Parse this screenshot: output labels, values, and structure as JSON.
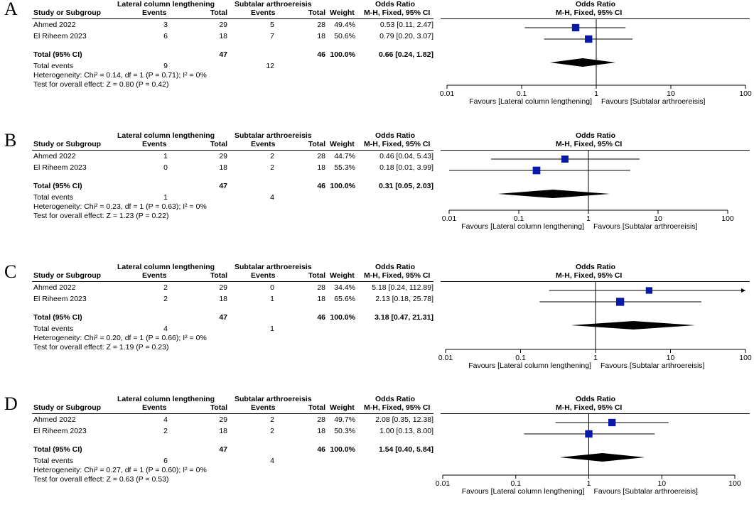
{
  "colors": {
    "marker": "#0a1aa8",
    "line": "#000000"
  },
  "headers": {
    "group1": "Lateral column lengthening",
    "group2": "Subtalar arthroereisis",
    "or_title": "Odds Ratio",
    "study": "Study or Subgroup",
    "events": "Events",
    "total": "Total",
    "weight": "Weight",
    "method": "M-H, Fixed, 95% CI"
  },
  "axis": {
    "ticks": [
      "0.01",
      "0.1",
      "1",
      "10",
      "100"
    ],
    "favours_left": "Favours [Lateral column lengthening]",
    "favours_right": "Favours [Subtalar arthroereisis]"
  },
  "panels": [
    {
      "letter": "A",
      "studies": [
        {
          "name": "Ahmed 2022",
          "e1": "3",
          "t1": "29",
          "e2": "5",
          "t2": "28",
          "weight": "49.4%",
          "ci": "0.53 [0.11, 2.47]"
        },
        {
          "name": "El Riheem 2023",
          "e1": "6",
          "t1": "18",
          "e2": "7",
          "t2": "18",
          "weight": "50.6%",
          "ci": "0.79 [0.20, 3.07]"
        }
      ],
      "total": {
        "label": "Total (95% CI)",
        "t1": "47",
        "t2": "46",
        "weight": "100.0%",
        "ci": "0.66 [0.24, 1.82]"
      },
      "events": {
        "label": "Total events",
        "e1": "9",
        "e2": "12"
      },
      "heterogeneity": "Heterogeneity: Chi² = 0.14, df = 1 (P = 0.71); I² = 0%",
      "overall": "Test for overall effect: Z = 0.80 (P = 0.42)"
    },
    {
      "letter": "B",
      "studies": [
        {
          "name": "Ahmed 2022",
          "e1": "1",
          "t1": "29",
          "e2": "2",
          "t2": "28",
          "weight": "44.7%",
          "ci": "0.46 [0.04, 5.43]"
        },
        {
          "name": "El Riheem 2023",
          "e1": "0",
          "t1": "18",
          "e2": "2",
          "t2": "18",
          "weight": "55.3%",
          "ci": "0.18 [0.01, 3.99]"
        }
      ],
      "total": {
        "label": "Total (95% CI)",
        "t1": "47",
        "t2": "46",
        "weight": "100.0%",
        "ci": "0.31 [0.05, 2.03]"
      },
      "events": {
        "label": "Total events",
        "e1": "1",
        "e2": "4"
      },
      "heterogeneity": "Heterogeneity: Chi² = 0.23, df = 1 (P = 0.63); I² = 0%",
      "overall": "Test for overall effect: Z = 1.23 (P = 0.22)"
    },
    {
      "letter": "C",
      "studies": [
        {
          "name": "Ahmed 2022",
          "e1": "2",
          "t1": "29",
          "e2": "0",
          "t2": "28",
          "weight": "34.4%",
          "ci": "5.18 [0.24, 112.89]"
        },
        {
          "name": "El Riheem 2023",
          "e1": "2",
          "t1": "18",
          "e2": "1",
          "t2": "18",
          "weight": "65.6%",
          "ci": "2.13 [0.18, 25.78]"
        }
      ],
      "total": {
        "label": "Total (95% CI)",
        "t1": "47",
        "t2": "46",
        "weight": "100.0%",
        "ci": "3.18 [0.47, 21.31]"
      },
      "events": {
        "label": "Total events",
        "e1": "4",
        "e2": "1"
      },
      "heterogeneity": "Heterogeneity: Chi² = 0.20, df = 1 (P = 0.66); I² = 0%",
      "overall": "Test for overall effect: Z = 1.19 (P = 0.23)"
    },
    {
      "letter": "D",
      "studies": [
        {
          "name": "Ahmed 2022",
          "e1": "4",
          "t1": "29",
          "e2": "2",
          "t2": "28",
          "weight": "49.7%",
          "ci": "2.08 [0.35, 12.38]"
        },
        {
          "name": "El Riheem 2023",
          "e1": "2",
          "t1": "18",
          "e2": "2",
          "t2": "18",
          "weight": "50.3%",
          "ci": "1.00 [0.13, 8.00]"
        }
      ],
      "total": {
        "label": "Total (95% CI)",
        "t1": "47",
        "t2": "46",
        "weight": "100.0%",
        "ci": "1.54 [0.40, 5.84]"
      },
      "events": {
        "label": "Total events",
        "e1": "6",
        "e2": "4"
      },
      "heterogeneity": "Heterogeneity: Chi² = 0.27, df = 1 (P = 0.60); I² = 0%",
      "overall": "Test for overall effect: Z = 0.63 (P = 0.53)"
    }
  ],
  "chart_data": [
    {
      "type": "forest",
      "panel": "A",
      "title": "Odds Ratio",
      "subtitle": "M-H, Fixed, 95% CI",
      "xscale": "log",
      "xlim": [
        0.01,
        100
      ],
      "xlabel_left": "Favours [Lateral column lengthening]",
      "xlabel_right": "Favours [Subtalar arthroereisis]",
      "studies": [
        {
          "name": "Ahmed 2022",
          "or": 0.53,
          "lo": 0.11,
          "hi": 2.47,
          "weight": 49.4
        },
        {
          "name": "El Riheem 2023",
          "or": 0.79,
          "lo": 0.2,
          "hi": 3.07,
          "weight": 50.6
        }
      ],
      "pooled": {
        "or": 0.66,
        "lo": 0.24,
        "hi": 1.82
      }
    },
    {
      "type": "forest",
      "panel": "B",
      "title": "Odds Ratio",
      "subtitle": "M-H, Fixed, 95% CI",
      "xscale": "log",
      "xlim": [
        0.01,
        100
      ],
      "xlabel_left": "Favours [Lateral column lengthening]",
      "xlabel_right": "Favours [Subtalar arthroereisis]",
      "studies": [
        {
          "name": "Ahmed 2022",
          "or": 0.46,
          "lo": 0.04,
          "hi": 5.43,
          "weight": 44.7
        },
        {
          "name": "El Riheem 2023",
          "or": 0.18,
          "lo": 0.01,
          "hi": 3.99,
          "weight": 55.3
        }
      ],
      "pooled": {
        "or": 0.31,
        "lo": 0.05,
        "hi": 2.03
      }
    },
    {
      "type": "forest",
      "panel": "C",
      "title": "Odds Ratio",
      "subtitle": "M-H, Fixed, 95% CI",
      "xscale": "log",
      "xlim": [
        0.01,
        100
      ],
      "xlabel_left": "Favours [Lateral column lengthening]",
      "xlabel_right": "Favours [Subtalar arthroereisis]",
      "studies": [
        {
          "name": "Ahmed 2022",
          "or": 5.18,
          "lo": 0.24,
          "hi": 112.89,
          "weight": 34.4
        },
        {
          "name": "El Riheem 2023",
          "or": 2.13,
          "lo": 0.18,
          "hi": 25.78,
          "weight": 65.6
        }
      ],
      "pooled": {
        "or": 3.18,
        "lo": 0.47,
        "hi": 21.31
      }
    },
    {
      "type": "forest",
      "panel": "D",
      "title": "Odds Ratio",
      "subtitle": "M-H, Fixed, 95% CI",
      "xscale": "log",
      "xlim": [
        0.01,
        100
      ],
      "xlabel_left": "Favours [Lateral column lengthening]",
      "xlabel_right": "Favours [Subtalar arthroereisis]",
      "studies": [
        {
          "name": "Ahmed 2022",
          "or": 2.08,
          "lo": 0.35,
          "hi": 12.38,
          "weight": 49.7
        },
        {
          "name": "El Riheem 2023",
          "or": 1.0,
          "lo": 0.13,
          "hi": 8.0,
          "weight": 50.3
        }
      ],
      "pooled": {
        "or": 1.54,
        "lo": 0.4,
        "hi": 5.84
      }
    }
  ]
}
